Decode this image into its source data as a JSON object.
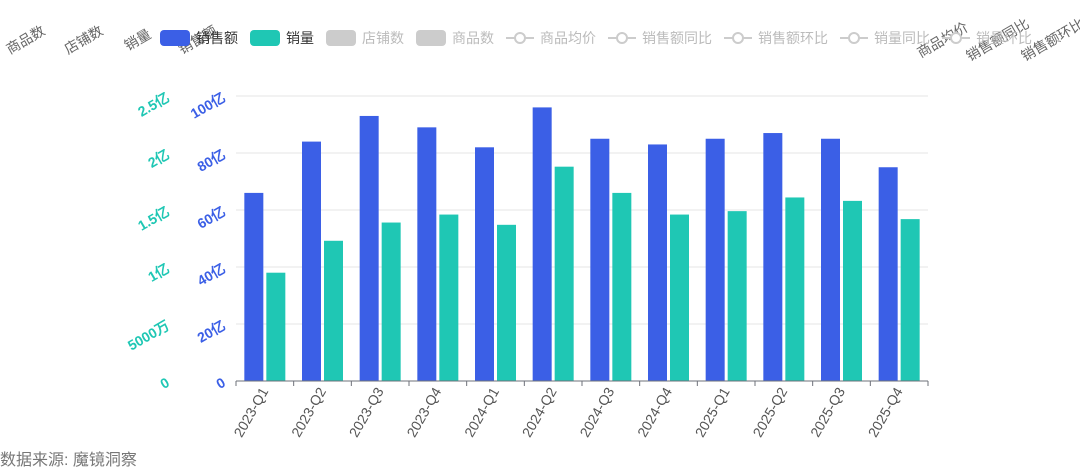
{
  "legend": [
    {
      "label": "销售额",
      "color": "#3b5fe6",
      "active": true,
      "kind": "bar"
    },
    {
      "label": "销量",
      "color": "#1fc7b4",
      "active": true,
      "kind": "bar"
    },
    {
      "label": "店铺数",
      "color": "#cccccc",
      "active": false,
      "kind": "bar"
    },
    {
      "label": "商品数",
      "color": "#cccccc",
      "active": false,
      "kind": "bar"
    },
    {
      "label": "商品均价",
      "color": "#cccccc",
      "active": false,
      "kind": "line"
    },
    {
      "label": "销售额同比",
      "color": "#cccccc",
      "active": false,
      "kind": "line"
    },
    {
      "label": "销售额环比",
      "color": "#cccccc",
      "active": false,
      "kind": "line"
    },
    {
      "label": "销量同比",
      "color": "#cccccc",
      "active": false,
      "kind": "line"
    },
    {
      "label": "销量环比",
      "color": "#cccccc",
      "active": false,
      "kind": "line"
    }
  ],
  "hidden_axis_names": [
    "商品数",
    "店铺数",
    "销量",
    "销售额",
    "商品均价",
    "销售额同比",
    "销售额环比"
  ],
  "source_text": "数据来源: 魔镜洞察",
  "chart_data": {
    "type": "bar",
    "categories": [
      "2023-Q1",
      "2023-Q2",
      "2023-Q3",
      "2023-Q4",
      "2024-Q1",
      "2024-Q2",
      "2024-Q3",
      "2024-Q4",
      "2025-Q1",
      "2025-Q2",
      "2025-Q3",
      "2025-Q4"
    ],
    "series": [
      {
        "name": "销售额",
        "axis": "left",
        "color": "#3b5fe6",
        "unit": "亿",
        "values": [
          66,
          84,
          93,
          89,
          82,
          96,
          85,
          83,
          85,
          87,
          85,
          75
        ]
      },
      {
        "name": "销量",
        "axis": "right",
        "color": "#1fc7b4",
        "unit": "亿",
        "values": [
          0.95,
          1.23,
          1.39,
          1.46,
          1.37,
          1.88,
          1.65,
          1.46,
          1.49,
          1.61,
          1.58,
          1.42
        ]
      }
    ],
    "y_left": {
      "min": 0,
      "max": 100,
      "ticks": [
        0,
        20,
        40,
        60,
        80,
        100
      ],
      "tick_labels": [
        "0",
        "20亿",
        "40亿",
        "60亿",
        "80亿",
        "100亿"
      ],
      "color": "#3b5fe6"
    },
    "y_right": {
      "min": 0,
      "max": 2.5,
      "ticks": [
        0,
        0.5,
        1,
        1.5,
        2,
        2.5
      ],
      "tick_labels": [
        "0",
        "5000万",
        "1亿",
        "1.5亿",
        "2亿",
        "2.5亿"
      ],
      "color": "#1fc7b4"
    },
    "grid": true
  }
}
